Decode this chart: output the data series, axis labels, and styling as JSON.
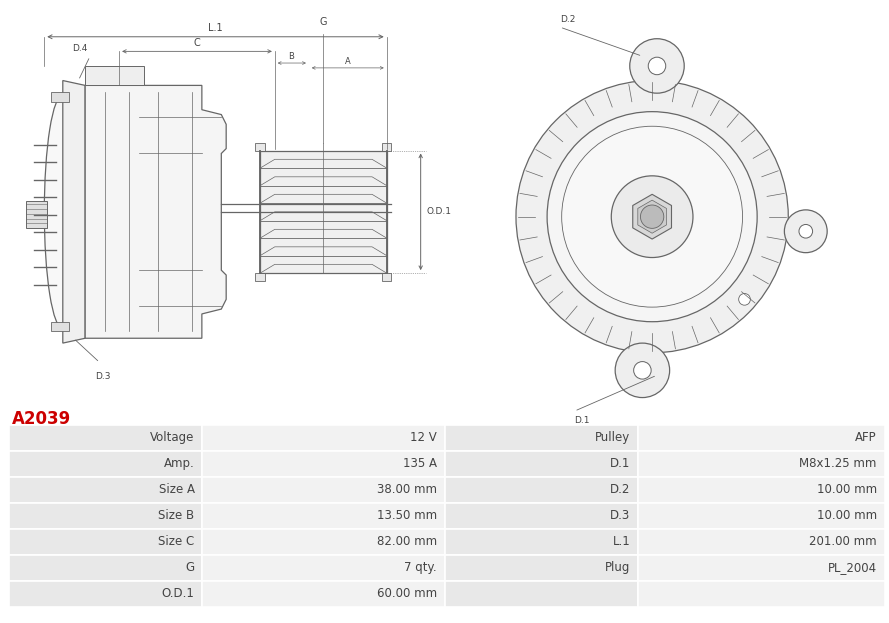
{
  "title": "A2039",
  "title_color": "#cc0000",
  "table_rows": [
    [
      "Voltage",
      "12 V",
      "Pulley",
      "AFP"
    ],
    [
      "Amp.",
      "135 A",
      "D.1",
      "M8x1.25 mm"
    ],
    [
      "Size A",
      "38.00 mm",
      "D.2",
      "10.00 mm"
    ],
    [
      "Size B",
      "13.50 mm",
      "D.3",
      "10.00 mm"
    ],
    [
      "Size C",
      "82.00 mm",
      "L.1",
      "201.00 mm"
    ],
    [
      "G",
      "7 qty.",
      "Plug",
      "PL_2004"
    ],
    [
      "O.D.1",
      "60.00 mm",
      "",
      ""
    ]
  ],
  "row_bg_odd": "#e8e8e8",
  "row_bg_even": "#f0f0f0",
  "border_color": "#ffffff",
  "text_color": "#444444",
  "image_bg": "#ffffff",
  "line_color": "#666666",
  "line_width": 0.8
}
